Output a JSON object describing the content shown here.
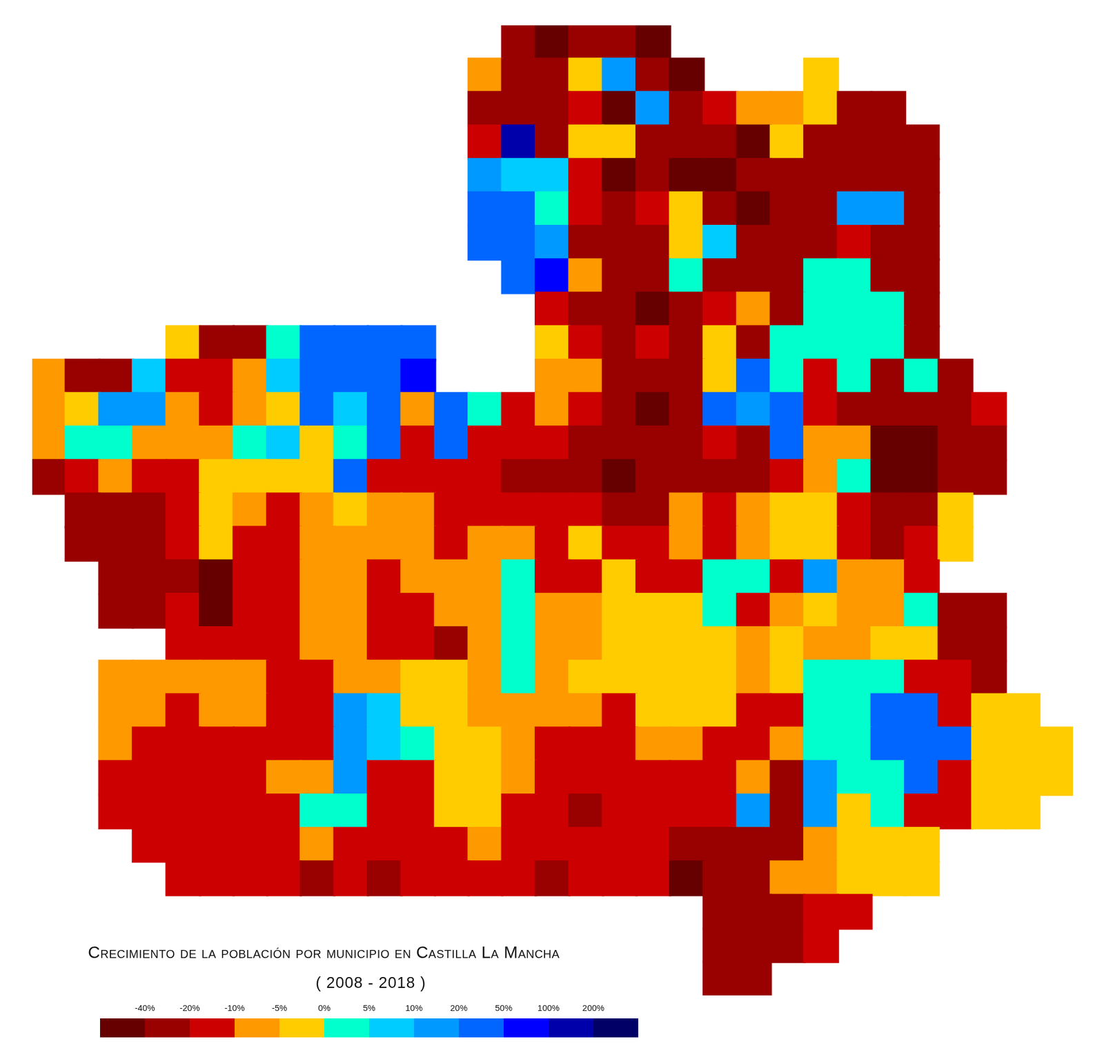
{
  "chart_data": {
    "type": "map",
    "title": "Crecimiento de la población por municipio en Castilla La Mancha",
    "subtitle": "( 2008 - 2018 )",
    "grid": false,
    "tick_labels": false,
    "colorbar": {
      "ticks": [
        {
          "value": -40,
          "label": "-40%"
        },
        {
          "value": -20,
          "label": "-20%"
        },
        {
          "value": -10,
          "label": "-10%"
        },
        {
          "value": -5,
          "label": "-5%"
        },
        {
          "value": 0,
          "label": "0%"
        },
        {
          "value": 5,
          "label": "5%"
        },
        {
          "value": 10,
          "label": "10%"
        },
        {
          "value": 20,
          "label": "20%"
        },
        {
          "value": 50,
          "label": "50%"
        },
        {
          "value": 100,
          "label": "100%"
        },
        {
          "value": 200,
          "label": "200%"
        }
      ],
      "colors": [
        "#660000",
        "#990000",
        "#cc0000",
        "#ff9900",
        "#ffcc00",
        "#00ffcc",
        "#00ccff",
        "#0099ff",
        "#0066ff",
        "#0000ff",
        "#0000aa",
        "#000066"
      ]
    },
    "cells": [
      [
        null,
        null,
        null,
        null,
        null,
        null,
        null,
        null,
        null,
        null,
        null,
        null,
        null,
        null,
        -30,
        -50,
        -30,
        -30,
        -50,
        null,
        null,
        null,
        null,
        null,
        null,
        null,
        null,
        null,
        null,
        null,
        null
      ],
      [
        null,
        null,
        null,
        null,
        null,
        null,
        null,
        null,
        null,
        null,
        null,
        null,
        null,
        -7,
        -30,
        -30,
        -2,
        15,
        -30,
        -50,
        null,
        null,
        null,
        -2,
        null,
        null,
        null,
        null,
        null,
        null,
        null
      ],
      [
        null,
        null,
        null,
        null,
        null,
        null,
        null,
        null,
        null,
        null,
        null,
        null,
        null,
        -30,
        -30,
        -30,
        -15,
        -50,
        15,
        -30,
        -15,
        -7,
        -7,
        -2,
        -30,
        -30,
        null,
        null,
        null,
        null,
        null
      ],
      [
        null,
        null,
        null,
        null,
        null,
        null,
        null,
        null,
        null,
        null,
        null,
        null,
        null,
        -15,
        150,
        -30,
        -2,
        -2,
        -30,
        -30,
        -30,
        -50,
        -2,
        -30,
        -30,
        -30,
        -30,
        null,
        null,
        null,
        null
      ],
      [
        null,
        null,
        null,
        null,
        null,
        null,
        null,
        null,
        null,
        null,
        null,
        null,
        null,
        15,
        7,
        7,
        -15,
        -50,
        -30,
        -50,
        -50,
        -30,
        -30,
        -30,
        -30,
        -30,
        -30,
        null,
        null,
        null,
        null
      ],
      [
        null,
        null,
        null,
        null,
        null,
        null,
        null,
        null,
        null,
        null,
        null,
        null,
        null,
        35,
        35,
        2,
        -15,
        -30,
        -15,
        -2,
        -30,
        -50,
        -30,
        -30,
        15,
        15,
        -30,
        null,
        null,
        null,
        null
      ],
      [
        null,
        null,
        null,
        null,
        null,
        null,
        null,
        null,
        null,
        null,
        null,
        null,
        null,
        35,
        35,
        15,
        -30,
        -30,
        -30,
        -2,
        7,
        -30,
        -30,
        -30,
        -15,
        -30,
        -30,
        null,
        null,
        null,
        null
      ],
      [
        null,
        null,
        null,
        null,
        null,
        null,
        null,
        null,
        null,
        null,
        null,
        null,
        null,
        null,
        35,
        75,
        -7,
        -30,
        -30,
        2,
        -30,
        -30,
        -30,
        2,
        2,
        -30,
        -30,
        null,
        null,
        null,
        null
      ],
      [
        null,
        null,
        null,
        null,
        null,
        null,
        null,
        null,
        null,
        null,
        null,
        null,
        null,
        null,
        null,
        -15,
        -30,
        -30,
        -50,
        -30,
        -15,
        -7,
        -30,
        2,
        2,
        2,
        -30,
        null,
        null,
        null,
        null
      ],
      [
        null,
        null,
        null,
        null,
        -2,
        -30,
        -30,
        2,
        35,
        35,
        35,
        35,
        null,
        null,
        null,
        -2,
        -15,
        -30,
        -15,
        -30,
        -2,
        -30,
        2,
        2,
        2,
        2,
        -30,
        null,
        null,
        null,
        null
      ],
      [
        -7,
        -30,
        -30,
        7,
        -15,
        -15,
        -7,
        7,
        35,
        35,
        35,
        75,
        null,
        null,
        null,
        -7,
        -7,
        -30,
        -30,
        -30,
        -2,
        35,
        2,
        -15,
        2,
        -30,
        2,
        -30,
        null,
        null,
        null
      ],
      [
        -7,
        -2,
        15,
        15,
        -7,
        -15,
        -7,
        -2,
        35,
        7,
        35,
        -7,
        35,
        2,
        -15,
        -7,
        -15,
        -30,
        -50,
        -30,
        35,
        15,
        35,
        -15,
        -30,
        -30,
        -30,
        -30,
        -15,
        null,
        null
      ],
      [
        -7,
        2,
        2,
        -7,
        -7,
        -7,
        2,
        7,
        -2,
        2,
        35,
        -15,
        35,
        -15,
        -15,
        -15,
        -30,
        -30,
        -30,
        -30,
        -15,
        -30,
        35,
        -7,
        -7,
        -50,
        -50,
        -30,
        -30,
        null,
        null
      ],
      [
        -30,
        -15,
        -7,
        -15,
        -15,
        -2,
        -2,
        -2,
        -2,
        35,
        -15,
        -15,
        -15,
        -15,
        -30,
        -30,
        -30,
        -50,
        -30,
        -30,
        -30,
        -30,
        -15,
        -7,
        2,
        -50,
        -50,
        -30,
        -30,
        null,
        null
      ],
      [
        null,
        -30,
        -30,
        -30,
        -15,
        -2,
        -7,
        -15,
        -7,
        -2,
        -7,
        -7,
        -15,
        -15,
        -15,
        -15,
        -15,
        -30,
        -30,
        -7,
        -15,
        -7,
        -2,
        -2,
        -15,
        -30,
        -30,
        -2,
        null,
        null,
        null
      ],
      [
        null,
        -30,
        -30,
        -30,
        -15,
        -2,
        -15,
        -15,
        -7,
        -7,
        -7,
        -7,
        -15,
        -7,
        -7,
        -15,
        -2,
        -15,
        -15,
        -7,
        -15,
        -7,
        -2,
        -2,
        -15,
        -30,
        -15,
        -2,
        null,
        null,
        null
      ],
      [
        null,
        null,
        -30,
        -30,
        -30,
        -50,
        -15,
        -15,
        -7,
        -7,
        -15,
        -7,
        -7,
        -7,
        2,
        -15,
        -15,
        -2,
        -15,
        -15,
        2,
        2,
        -15,
        15,
        -7,
        -7,
        -15,
        null,
        null,
        null,
        null
      ],
      [
        null,
        null,
        -30,
        -30,
        -15,
        -50,
        -15,
        -15,
        -7,
        -7,
        -15,
        -15,
        -7,
        -7,
        2,
        -7,
        -7,
        -2,
        -2,
        -2,
        2,
        -15,
        -7,
        -2,
        -7,
        -7,
        2,
        -30,
        -30,
        null,
        null
      ],
      [
        null,
        null,
        null,
        null,
        -15,
        -15,
        -15,
        -15,
        -7,
        -7,
        -15,
        -15,
        -30,
        -7,
        2,
        -7,
        -7,
        -2,
        -2,
        -2,
        -2,
        -7,
        -2,
        -7,
        -7,
        -2,
        -2,
        -30,
        -30,
        null,
        null
      ],
      [
        null,
        null,
        -7,
        -7,
        -7,
        -7,
        -7,
        -15,
        -15,
        -7,
        -7,
        -2,
        -2,
        -7,
        2,
        -7,
        -2,
        -2,
        -2,
        -2,
        -2,
        -7,
        -2,
        2,
        2,
        2,
        -15,
        -15,
        -30,
        null,
        null
      ],
      [
        null,
        null,
        -7,
        -7,
        -15,
        -7,
        -7,
        -15,
        -15,
        15,
        7,
        -2,
        -2,
        -7,
        -7,
        -7,
        -7,
        -15,
        -2,
        -2,
        -2,
        -15,
        -15,
        2,
        2,
        35,
        35,
        -15,
        -2,
        -2,
        null
      ],
      [
        null,
        null,
        -7,
        -15,
        -15,
        -15,
        -15,
        -15,
        -15,
        15,
        7,
        2,
        -2,
        -2,
        -7,
        -15,
        -15,
        -15,
        -7,
        -7,
        -15,
        -15,
        -7,
        2,
        2,
        35,
        35,
        35,
        -2,
        -2,
        -2
      ],
      [
        null,
        null,
        -15,
        -15,
        -15,
        -15,
        -15,
        -7,
        -7,
        15,
        -15,
        -15,
        -2,
        -2,
        -7,
        -15,
        -15,
        -15,
        -15,
        -15,
        -15,
        -7,
        -30,
        15,
        2,
        2,
        35,
        -15,
        -2,
        -2,
        -2
      ],
      [
        null,
        null,
        -15,
        -15,
        -15,
        -15,
        -15,
        -15,
        2,
        2,
        -15,
        -15,
        -2,
        -2,
        -15,
        -15,
        -30,
        -15,
        -15,
        -15,
        -15,
        15,
        -30,
        15,
        -2,
        2,
        -15,
        -15,
        -2,
        -2,
        null
      ],
      [
        null,
        null,
        null,
        -15,
        -15,
        -15,
        -15,
        -15,
        -7,
        -15,
        -15,
        -15,
        -15,
        -7,
        -15,
        -15,
        -15,
        -15,
        -15,
        -30,
        -30,
        -30,
        -30,
        -7,
        -2,
        -2,
        -2,
        null,
        null,
        null,
        null
      ],
      [
        null,
        null,
        null,
        null,
        -15,
        -15,
        -15,
        -15,
        -30,
        -15,
        -30,
        -15,
        -15,
        -15,
        -15,
        -30,
        -15,
        -15,
        -15,
        -50,
        -30,
        -30,
        -7,
        -7,
        -2,
        -2,
        -2,
        null,
        null,
        null,
        null
      ],
      [
        null,
        null,
        null,
        null,
        null,
        null,
        null,
        null,
        null,
        null,
        null,
        null,
        null,
        null,
        null,
        null,
        null,
        null,
        null,
        null,
        -30,
        -30,
        -30,
        -15,
        -15,
        null,
        null,
        null,
        null,
        null,
        null
      ],
      [
        null,
        null,
        null,
        null,
        null,
        null,
        null,
        null,
        null,
        null,
        null,
        null,
        null,
        null,
        null,
        null,
        null,
        null,
        null,
        null,
        -30,
        -30,
        -30,
        -15,
        null,
        null,
        null,
        null,
        null,
        null,
        null
      ],
      [
        null,
        null,
        null,
        null,
        null,
        null,
        null,
        null,
        null,
        null,
        null,
        null,
        null,
        null,
        null,
        null,
        null,
        null,
        null,
        null,
        -30,
        -30,
        null,
        null,
        null,
        null,
        null,
        null,
        null,
        null,
        null
      ]
    ]
  }
}
